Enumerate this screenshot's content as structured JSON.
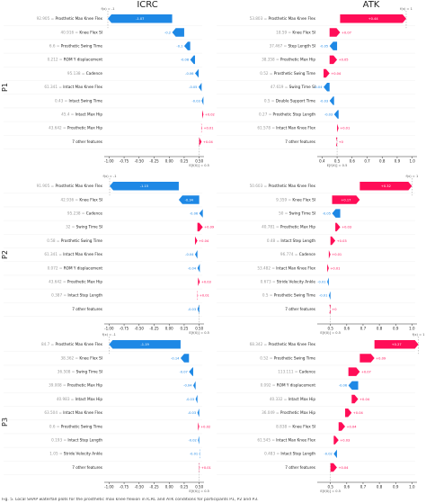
{
  "column_titles": [
    "ICRC",
    "ATK"
  ],
  "row_labels": [
    "P1",
    "P2",
    "P3"
  ],
  "caption": "Fig. 5.  Local SHAP waterfall plots for the prosthetic max knee flexion in ICRC and ATK conditions for participants P1, P2 and P3.",
  "colors": {
    "positive": "#ff0d57",
    "negative": "#1e88e5"
  },
  "chart_data": [
    {
      "type": "waterfall",
      "id": "P1-ICRC",
      "row": "P1",
      "column": "ICRC",
      "fx_label": "f(x) = -1",
      "efx_label": "E[f(X)] = 0.5",
      "xlim": [
        -1.05,
        0.55
      ],
      "xticks": [
        "-1.00",
        "-0.75",
        "-0.50",
        "-0.25",
        "0.00",
        "0.25",
        "0.50"
      ],
      "xtick_values": [
        -1.0,
        -0.75,
        -0.5,
        -0.25,
        0.0,
        0.25,
        0.5
      ],
      "features": [
        {
          "value": "92.905",
          "name": "Prosthetic Max Knee Flex",
          "shap": -1.07,
          "label": "-1.07"
        },
        {
          "value": "40.916",
          "name": "Knee Flex SI",
          "shap": -0.2,
          "label": "-0.2"
        },
        {
          "value": "6.6",
          "name": "Prosthetic Swing Time",
          "shap": -0.1,
          "label": "-0.1"
        },
        {
          "value": "0.212",
          "name": "ROM Y displacement",
          "shap": -0.08,
          "label": "-0.08"
        },
        {
          "value": "95.138",
          "name": "Cadence",
          "shap": -0.06,
          "label": "-0.06"
        },
        {
          "value": "61.341",
          "name": "Intact Max Knee Flex",
          "shap": -0.05,
          "label": "-0.05"
        },
        {
          "value": "0.43",
          "name": "Intact Swing Time",
          "shap": -0.03,
          "label": "-0.03"
        },
        {
          "value": "45.4",
          "name": "Intact Max Hip",
          "shap": 0.02,
          "label": "+0.02"
        },
        {
          "value": "43.642",
          "name": "Prosthetic Max Hip",
          "shap": 0.01,
          "label": "+0.01"
        },
        {
          "value": "",
          "name": "7 other features",
          "shap": 0.04,
          "label": "+0.04"
        }
      ]
    },
    {
      "type": "waterfall",
      "id": "P1-ATK",
      "row": "P1",
      "column": "ATK",
      "fx_label": "f(x) = 1",
      "efx_label": "E[f(X)] = 0.5",
      "xlim": [
        0.38,
        1.02
      ],
      "xticks": [
        "0.4",
        "0.5",
        "0.6",
        "0.7",
        "0.8",
        "0.9",
        "1.0"
      ],
      "xtick_values": [
        0.4,
        0.5,
        0.6,
        0.7,
        0.8,
        0.9,
        1.0
      ],
      "features": [
        {
          "value": "53.803",
          "name": "Prosthetic Max Knee Flex",
          "shap": 0.44,
          "label": "+0.44"
        },
        {
          "value": "18.59",
          "name": "Knee Flex SI",
          "shap": 0.07,
          "label": "+0.07"
        },
        {
          "value": "37.467",
          "name": "Step Length SI",
          "shap": -0.05,
          "label": "-0.05"
        },
        {
          "value": "38.358",
          "name": "Prosthetic Max Hip",
          "shap": 0.05,
          "label": "+0.05"
        },
        {
          "value": "0.52",
          "name": "Prosthetic Swing Time",
          "shap": 0.04,
          "label": "+0.04"
        },
        {
          "value": "47.619",
          "name": "Swing Time SI",
          "shap": -0.04,
          "label": "-0.04"
        },
        {
          "value": "0.5",
          "name": "Double Support Time",
          "shap": -0.03,
          "label": "-0.03"
        },
        {
          "value": "0.27",
          "name": "Prosthetic Step Length",
          "shap": -0.03,
          "label": "-0.03"
        },
        {
          "value": "61.578",
          "name": "Intact Max Knee Flex",
          "shap": 0.01,
          "label": "+0.01"
        },
        {
          "value": "",
          "name": "7 other features",
          "shap": 0.0,
          "label": "+0"
        }
      ]
    },
    {
      "type": "waterfall",
      "id": "P2-ICRC",
      "row": "P2",
      "column": "ICRC",
      "fx_label": "f(x) = -1",
      "efx_label": "E[f(X)] = 0.5",
      "xlim": [
        -1.05,
        0.55
      ],
      "xticks": [
        "-1.00",
        "-0.75",
        "-0.50",
        "-0.25",
        "0.00",
        "0.25",
        "0.50"
      ],
      "xtick_values": [
        -1.0,
        -0.75,
        -0.5,
        -0.25,
        0.0,
        0.25,
        0.5
      ],
      "features": [
        {
          "value": "91.905",
          "name": "Prosthetic Max Knee Flex",
          "shap": -1.15,
          "label": "-1.15"
        },
        {
          "value": "42.936",
          "name": "Knee Flex SI",
          "shap": -0.34,
          "label": "-0.34"
        },
        {
          "value": "95.238",
          "name": "Cadence",
          "shap": -0.06,
          "label": "-0.06"
        },
        {
          "value": "32",
          "name": "Swing Time SI",
          "shap": 0.09,
          "label": "+0.09"
        },
        {
          "value": "0.58",
          "name": "Prosthetic Swing Time",
          "shap": 0.04,
          "label": "+0.04"
        },
        {
          "value": "61.341",
          "name": "Intact Max Knee Flex",
          "shap": -0.04,
          "label": "-0.04"
        },
        {
          "value": "0.072",
          "name": "ROM Y displacement",
          "shap": -0.04,
          "label": "-0.04"
        },
        {
          "value": "43.642",
          "name": "Prosthetic Max Hip",
          "shap": 0.03,
          "label": "+0.03"
        },
        {
          "value": "0.387",
          "name": "Intact Step Length",
          "shap": 0.01,
          "label": "+0.01"
        },
        {
          "value": "",
          "name": "7 other features",
          "shap": -0.03,
          "label": "-0.03"
        }
      ]
    },
    {
      "type": "waterfall",
      "id": "P2-ATK",
      "row": "P2",
      "column": "ATK",
      "fx_label": "f(x) = 1",
      "efx_label": "E[f(X)] = 0.5",
      "xlim": [
        0.43,
        1.02
      ],
      "xticks": [
        "0.5",
        "0.6",
        "0.7",
        "0.8",
        "0.9",
        "1.0"
      ],
      "xtick_values": [
        0.5,
        0.6,
        0.7,
        0.8,
        0.9,
        1.0
      ],
      "features": [
        {
          "value": "50.603",
          "name": "Prosthetic Max Knee Flex",
          "shap": 0.32,
          "label": "+0.32"
        },
        {
          "value": "9.359",
          "name": "Knee Flex SI",
          "shap": 0.17,
          "label": "+0.17"
        },
        {
          "value": "50",
          "name": "Swing Time SI",
          "shap": -0.05,
          "label": "-0.05"
        },
        {
          "value": "40.781",
          "name": "Prosthetic Max Hip",
          "shap": 0.03,
          "label": "+0.03"
        },
        {
          "value": "0.48",
          "name": "Intact Step Length",
          "shap": 0.03,
          "label": "+0.03"
        },
        {
          "value": "96.774",
          "name": "Cadence",
          "shap": 0.01,
          "label": "+0.01"
        },
        {
          "value": "53.482",
          "name": "Intact Max Knee Flex",
          "shap": 0.01,
          "label": "+0.01"
        },
        {
          "value": "0.673",
          "name": "Stride Velocity Ankle",
          "shap": -0.01,
          "label": "-0.01"
        },
        {
          "value": "0.5",
          "name": "Prosthetic Swing Time",
          "shap": -0.01,
          "label": "-0.01"
        },
        {
          "value": "",
          "name": "7 other features",
          "shap": 0.0,
          "label": "+0"
        }
      ]
    },
    {
      "type": "waterfall",
      "id": "P3-ICRC",
      "row": "P3",
      "column": "ICRC",
      "fx_label": "f(x) = -1",
      "efx_label": "E[f(X)] = 0.5",
      "xlim": [
        -1.05,
        0.55
      ],
      "xticks": [
        "-1.00",
        "-0.75",
        "-0.50",
        "-0.25",
        "0.00",
        "0.25",
        "0.50"
      ],
      "xtick_values": [
        -1.0,
        -0.75,
        -0.5,
        -0.25,
        0.0,
        0.25,
        0.5
      ],
      "features": [
        {
          "value": "84.7",
          "name": "Prosthetic Max Knee Flex",
          "shap": -1.19,
          "label": "-1.19"
        },
        {
          "value": "38.362",
          "name": "Knee Flex SI",
          "shap": -0.14,
          "label": "-0.14"
        },
        {
          "value": "36.508",
          "name": "Swing Time SI",
          "shap": -0.07,
          "label": "-0.07"
        },
        {
          "value": "39.008",
          "name": "Prosthetic Max Hip",
          "shap": -0.04,
          "label": "-0.04"
        },
        {
          "value": "40.983",
          "name": "Intact Max Hip",
          "shap": -0.03,
          "label": "-0.03"
        },
        {
          "value": "63.504",
          "name": "Intact Max Knee Flex",
          "shap": -0.03,
          "label": "-0.03"
        },
        {
          "value": "0.6",
          "name": "Prosthetic Swing Time",
          "shap": 0.02,
          "label": "+0.02"
        },
        {
          "value": "0.193",
          "name": "Intact Step Length",
          "shap": -0.02,
          "label": "-0.02"
        },
        {
          "value": "1.05",
          "name": "Stride Velocity Ankle",
          "shap": -0.01,
          "label": "-0.01"
        },
        {
          "value": "",
          "name": "7 other features",
          "shap": 0.01,
          "label": "+0.01"
        }
      ]
    },
    {
      "type": "waterfall",
      "id": "P3-ATK",
      "row": "P3",
      "column": "ATK",
      "fx_label": "f(x) = 1",
      "efx_label": "E[f(X)] = 0.5",
      "xlim": [
        0.43,
        1.02
      ],
      "xticks": [
        "0.5",
        "0.6",
        "0.7",
        "0.8",
        "0.9",
        "1.0"
      ],
      "xtick_values": [
        0.5,
        0.6,
        0.7,
        0.8,
        0.9,
        1.0
      ],
      "features": [
        {
          "value": "68.342",
          "name": "Prosthetic Max Knee Flex",
          "shap": 0.27,
          "label": "+0.27"
        },
        {
          "value": "0.52",
          "name": "Prosthetic Swing Time",
          "shap": 0.09,
          "label": "+0.09"
        },
        {
          "value": "113.111",
          "name": "Cadence",
          "shap": 0.07,
          "label": "+0.07"
        },
        {
          "value": "0.092",
          "name": "ROM Y displacement",
          "shap": -0.06,
          "label": "-0.06"
        },
        {
          "value": "40.332",
          "name": "Intact Max Hip",
          "shap": 0.04,
          "label": "+0.04"
        },
        {
          "value": "36.049",
          "name": "Prosthetic Max Hip",
          "shap": 0.04,
          "label": "+0.04"
        },
        {
          "value": "8.838",
          "name": "Knee Flex SI",
          "shap": 0.04,
          "label": "+0.04"
        },
        {
          "value": "61.545",
          "name": "Intact Max Knee Flex",
          "shap": 0.03,
          "label": "+0.03"
        },
        {
          "value": "0.483",
          "name": "Intact Step Length",
          "shap": -0.02,
          "label": "-0.02"
        },
        {
          "value": "",
          "name": "7 other features",
          "shap": 0.04,
          "label": "+0.04"
        }
      ]
    }
  ]
}
